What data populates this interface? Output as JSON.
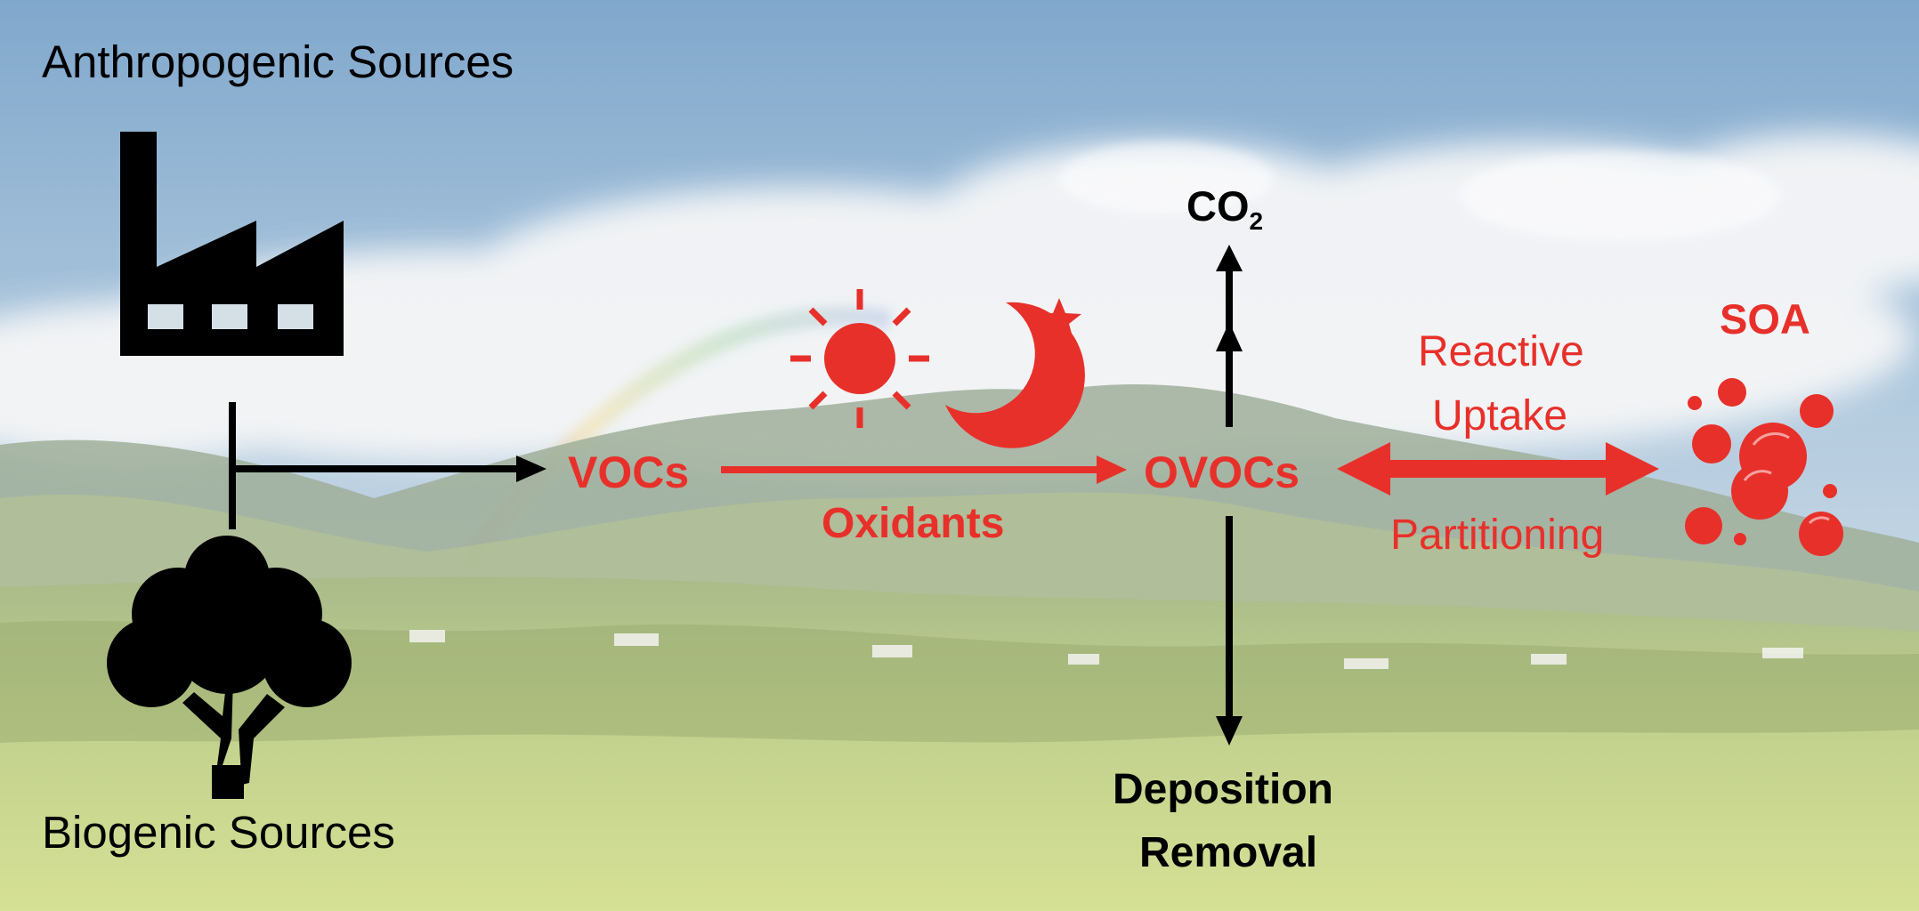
{
  "labels": {
    "anthropogenic": "Anthropogenic Sources",
    "biogenic": "Biogenic Sources",
    "vocs": "VOCs",
    "oxidants": "Oxidants",
    "ovocs": "OVOCs",
    "co2_main": "CO",
    "co2_sub": "2",
    "reactive": "Reactive",
    "uptake": "Uptake",
    "partitioning": "Partitioning",
    "soa": "SOA",
    "deposition": "Deposition",
    "removal": "Removal"
  },
  "icons": {
    "factory": "factory-icon",
    "tree": "tree-icon",
    "sun": "sun-icon",
    "moon": "moon-icon",
    "stars": "star-icon",
    "particles": "particles-icon"
  },
  "colors": {
    "accent_red": "#e8302a",
    "arrow_black": "#000000",
    "sky_top": "#6f9cc6",
    "cloud": "#f2f4f5",
    "mountain": "#8fa385",
    "grass": "#c4d57c"
  }
}
